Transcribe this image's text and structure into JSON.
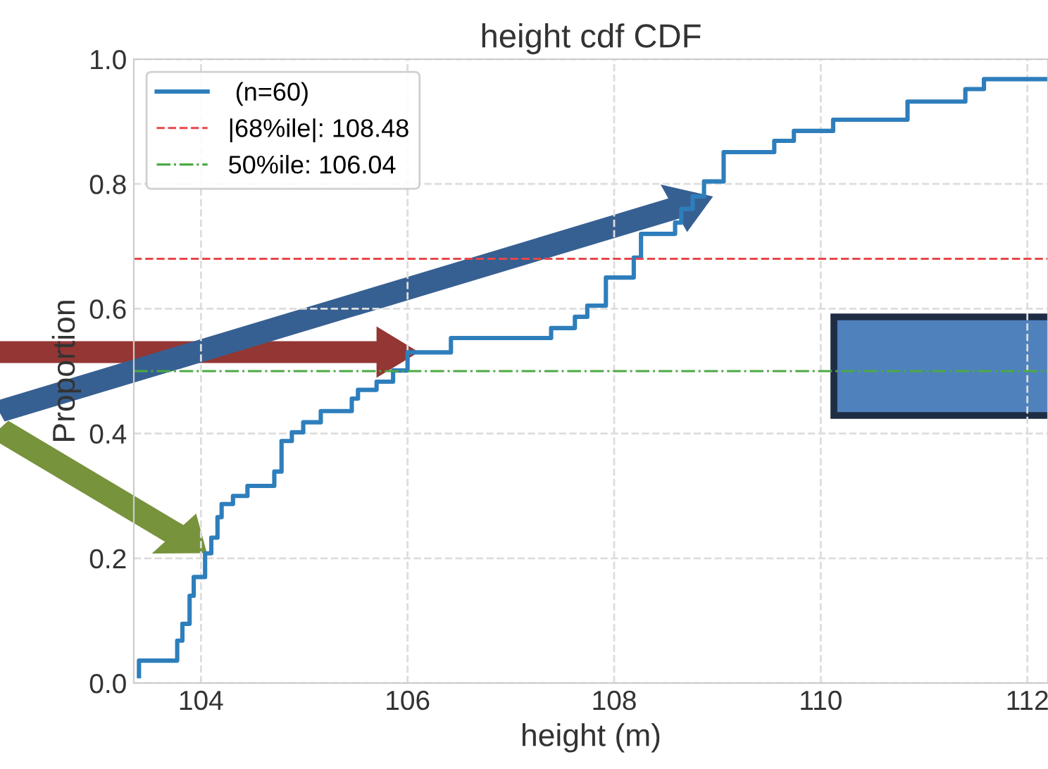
{
  "chart_data": {
    "type": "step",
    "title": "height cdf CDF",
    "xlabel": "height (m)",
    "ylabel": "Proportion",
    "series": [
      {
        "name": " (n=60)",
        "color": "#2e7ebc",
        "x": [
          103.4,
          103.4,
          103.77,
          103.82,
          103.89,
          103.93,
          104.04,
          104.1,
          104.16,
          104.2,
          104.31,
          104.45,
          104.71,
          104.78,
          104.88,
          104.99,
          105.16,
          105.46,
          105.52,
          105.7,
          105.86,
          106.0,
          106.42,
          107.39,
          107.62,
          107.74,
          107.92,
          108.19,
          108.26,
          108.59,
          108.65,
          108.76,
          108.87,
          109.06,
          109.55,
          109.74,
          110.12,
          110.84,
          111.4,
          111.58,
          112.2
        ],
        "values": [
          0.011,
          0.036,
          0.068,
          0.095,
          0.14,
          0.17,
          0.208,
          0.233,
          0.266,
          0.287,
          0.3,
          0.316,
          0.339,
          0.388,
          0.402,
          0.418,
          0.436,
          0.456,
          0.47,
          0.483,
          0.501,
          0.53,
          0.553,
          0.569,
          0.587,
          0.605,
          0.65,
          0.682,
          0.72,
          0.738,
          0.76,
          0.78,
          0.804,
          0.851,
          0.869,
          0.885,
          0.903,
          0.932,
          0.952,
          0.968,
          0.968
        ]
      }
    ],
    "ref_lines": [
      {
        "axis": "y",
        "value": 0.68,
        "label": "|68%ile|: 108.48",
        "color": "#e8474a",
        "line_style": "dashed"
      },
      {
        "axis": "y",
        "value": 0.5,
        "label": "50%ile: 106.04",
        "color": "#4caa44",
        "line_style": "dashdot"
      }
    ],
    "xlim": [
      103.35,
      112.2
    ],
    "ylim": [
      0,
      1.0
    ],
    "xticks": [
      104,
      106,
      108,
      110,
      112
    ],
    "yticks": [
      {
        "value": 0,
        "label": "0.0"
      },
      {
        "value": 0.2,
        "label": "0.2"
      },
      {
        "value": 0.4,
        "label": "0.4"
      },
      {
        "value": 0.6,
        "label": "0.6"
      },
      {
        "value": 0.8,
        "label": "0.8"
      },
      {
        "value": 1.0,
        "label": "1.0"
      }
    ],
    "grid": true,
    "legend": "top left"
  }
}
